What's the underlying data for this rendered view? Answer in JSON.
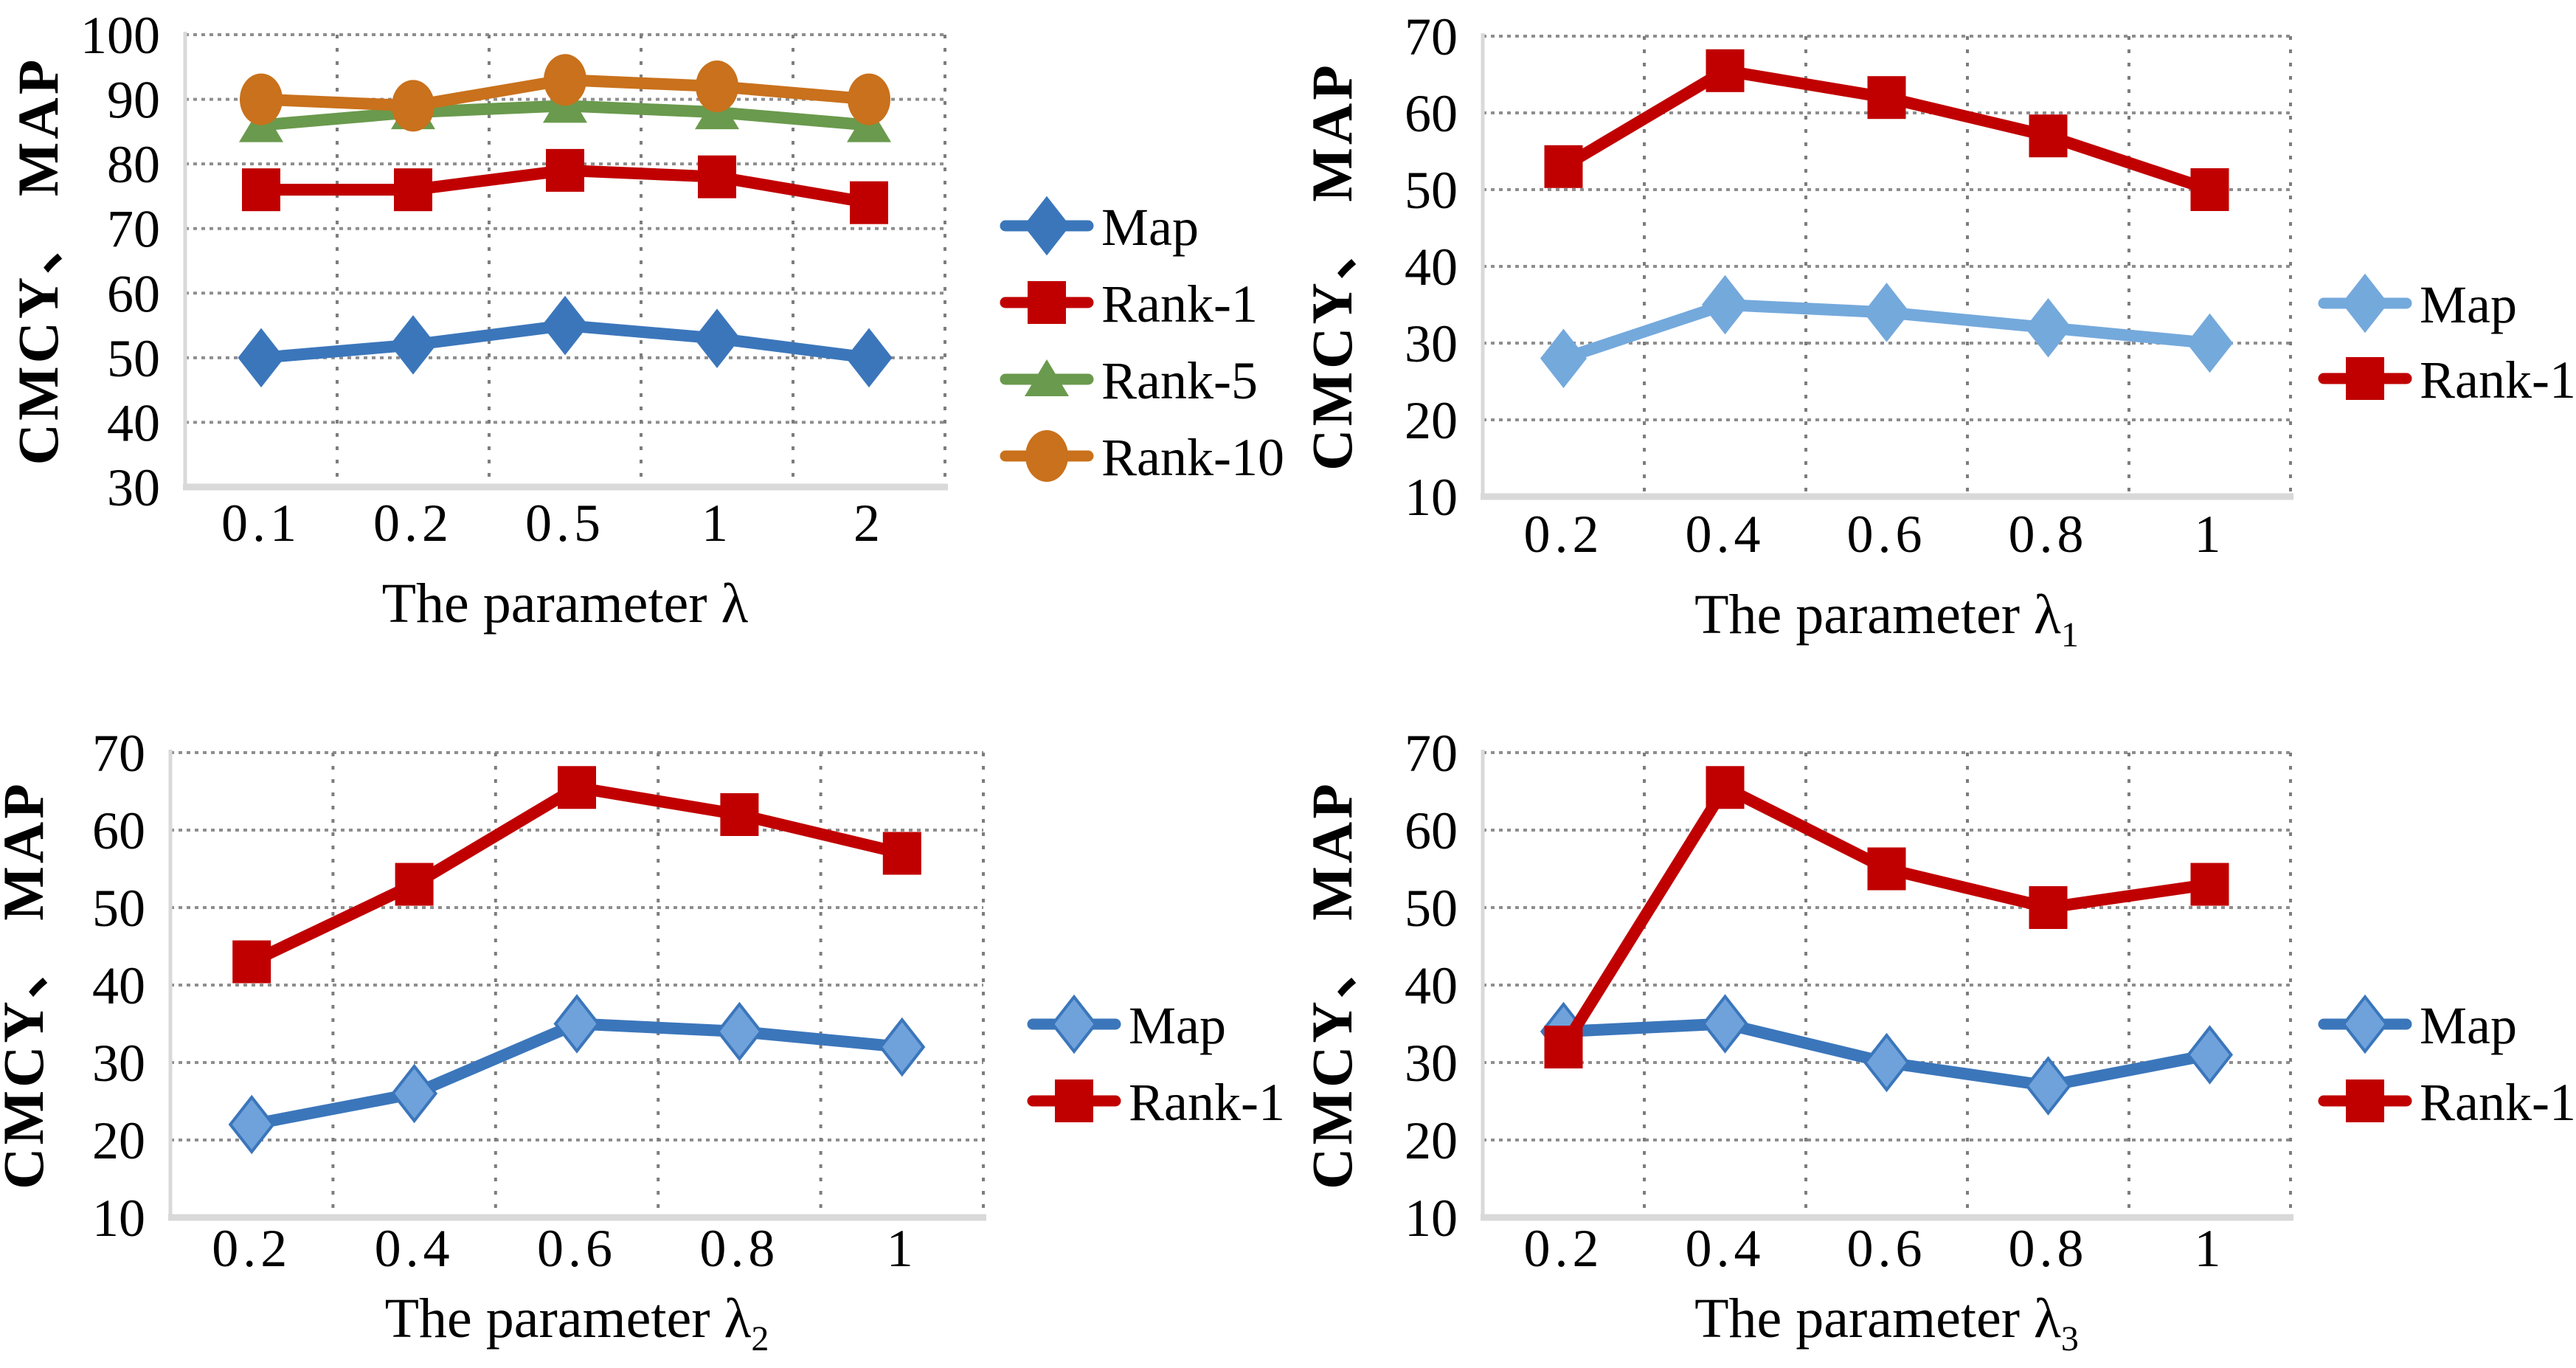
{
  "figure": {
    "background": "#ffffff",
    "grid_color_horizontal": "#8e8e8e",
    "grid_color_vertical": "#7d7d7d",
    "axis_color": "#d9d9d9"
  },
  "chart_data": [
    {
      "type": "line",
      "position": "top-left",
      "title": "",
      "ylabel": "CMCY、 MAP",
      "xlabel": "The parameter λ",
      "xlabel_sub": "",
      "categories": [
        "0.1",
        "0.2",
        "0.5",
        "1",
        "2"
      ],
      "ylim": [
        30,
        100
      ],
      "yticks": [
        30,
        40,
        50,
        60,
        70,
        80,
        90,
        100
      ],
      "grid": "dotted",
      "legend_position": "right",
      "series": [
        {
          "name": "Map",
          "marker": "diamond",
          "color": "#3b76bb",
          "marker_fill": "#3b76bb",
          "values": [
            50,
            52,
            55,
            53,
            50
          ]
        },
        {
          "name": "Rank-1",
          "marker": "square",
          "color": "#c00000",
          "marker_fill": "#c00000",
          "values": [
            76,
            76,
            79,
            78,
            74
          ]
        },
        {
          "name": "Rank-5",
          "marker": "triangle",
          "color": "#6a9a4d",
          "marker_fill": "#6a9a4d",
          "values": [
            86,
            88,
            89,
            88,
            86
          ]
        },
        {
          "name": "Rank-10",
          "marker": "circle",
          "color": "#c9711c",
          "marker_fill": "#c9711c",
          "values": [
            90,
            89,
            93,
            92,
            90
          ]
        }
      ]
    },
    {
      "type": "line",
      "position": "top-right",
      "title": "",
      "ylabel": "CMCY、 MAP",
      "xlabel": "The parameter λ",
      "xlabel_sub": "1",
      "categories": [
        "0.2",
        "0.4",
        "0.6",
        "0.8",
        "1"
      ],
      "ylim": [
        10,
        70
      ],
      "yticks": [
        10,
        20,
        30,
        40,
        50,
        60,
        70
      ],
      "grid": "dotted",
      "legend_position": "right",
      "series": [
        {
          "name": "Map",
          "marker": "diamond",
          "color": "#74a9dc",
          "marker_fill": "#74a9dc",
          "values": [
            28,
            35,
            34,
            32,
            30
          ]
        },
        {
          "name": "Rank-1",
          "marker": "square",
          "color": "#c00000",
          "marker_fill": "#c00000",
          "values": [
            53,
            65.5,
            62,
            57,
            50
          ]
        }
      ]
    },
    {
      "type": "line",
      "position": "bottom-left",
      "title": "",
      "ylabel": "CMCY、 MAP",
      "xlabel": "The parameter λ",
      "xlabel_sub": "2",
      "categories": [
        "0.2",
        "0.4",
        "0.6",
        "0.8",
        "1"
      ],
      "ylim": [
        10,
        70
      ],
      "yticks": [
        10,
        20,
        30,
        40,
        50,
        60,
        70
      ],
      "grid": "dotted",
      "legend_position": "right",
      "series": [
        {
          "name": "Map",
          "marker": "diamond",
          "color": "#3b76bb",
          "marker_fill": "#6fa2db",
          "values": [
            22,
            26,
            35,
            34,
            32
          ]
        },
        {
          "name": "Rank-1",
          "marker": "square",
          "color": "#c00000",
          "marker_fill": "#c00000",
          "values": [
            43,
            53,
            65.5,
            62,
            57
          ]
        }
      ]
    },
    {
      "type": "line",
      "position": "bottom-right",
      "title": "",
      "ylabel": "CMCY、 MAP",
      "xlabel": "The parameter λ",
      "xlabel_sub": "3",
      "categories": [
        "0.2",
        "0.4",
        "0.6",
        "0.8",
        "1"
      ],
      "ylim": [
        10,
        70
      ],
      "yticks": [
        10,
        20,
        30,
        40,
        50,
        60,
        70
      ],
      "grid": "dotted",
      "legend_position": "right",
      "series": [
        {
          "name": "Map",
          "marker": "diamond",
          "color": "#3b76bb",
          "marker_fill": "#6fa2db",
          "values": [
            34,
            35,
            30,
            27,
            31
          ]
        },
        {
          "name": "Rank-1",
          "marker": "square",
          "color": "#c00000",
          "marker_fill": "#c00000",
          "values": [
            32,
            65.5,
            55,
            50,
            53
          ]
        }
      ]
    }
  ]
}
